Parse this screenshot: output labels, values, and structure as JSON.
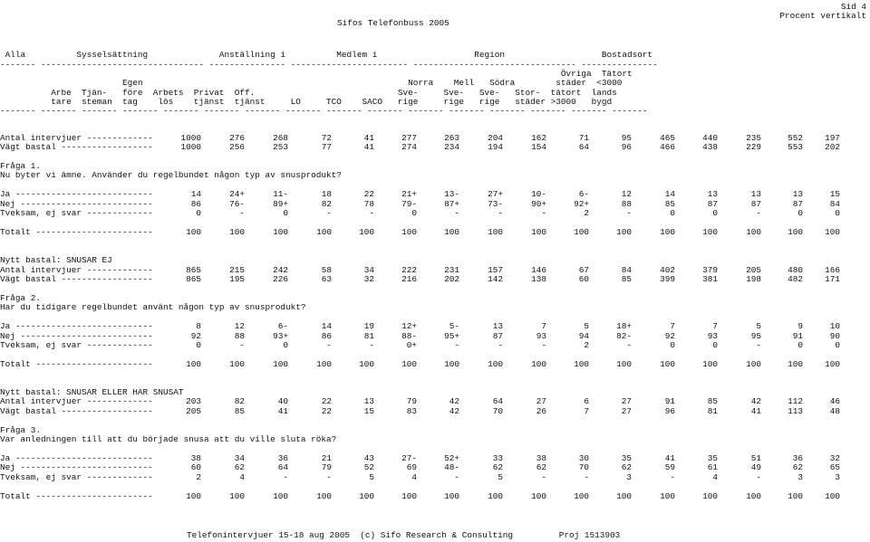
{
  "page": {
    "title": "Sifos Telefonbuss 2005",
    "page_label": "Sid 4",
    "subtitle": "Procent vertikalt",
    "footer": "Telefonintervjuer 15-18 aug 2005  (c) Sifo Research & Consulting         Proj 1513903"
  },
  "header": [
    {
      "text": " Alla          Sysselsättning              Anställning i          Medlem i                   Region                   Bostadsort"
    },
    {
      "text": "------- -------------------------------- --------------- ----------------------- -------------------------------- ---------------"
    },
    {
      "text": "                                                                                                              Övriga  Tätort"
    },
    {
      "text": "                        Egen                                                    Norra    Mell   Södra        städer  <3000"
    },
    {
      "text": "          Arbe  Tjän-   före  Arbets  Privat  Off.                            Sve-     Sve-   Sve-   Stor-  tätort  lands"
    },
    {
      "text": "          tare  steman  tag    lös    tjänst  tjänst     LO     TCO    SACO   rige     rige   rige   städer >3000   bygd"
    },
    {
      "text": "------- ------- ------- ------- ------- ------- ------- ------- ------- ------- ------- ------- ------- ------- ------- -------"
    }
  ],
  "block1": {
    "counts": [
      {
        "label": "Antal intervjuer -------------",
        "values": [
          "1000",
          "276",
          "268",
          "72",
          "41",
          "277",
          "263",
          "204",
          "162",
          "71",
          "95",
          "465",
          "440",
          "235",
          "552",
          "197"
        ]
      },
      {
        "label": "Vägt bastal ------------------",
        "values": [
          "1000",
          "256",
          "253",
          "77",
          "41",
          "274",
          "234",
          "194",
          "154",
          "64",
          "96",
          "466",
          "438",
          "229",
          "553",
          "202"
        ]
      }
    ],
    "question_no": "Fråga 1.",
    "question_lines": [
      "Nu byter vi ämne. Använder du regelbundet någon typ av snusprodukt?"
    ],
    "rows": [
      {
        "label": "Ja ---------------------------",
        "values": [
          "14",
          "24+",
          "11-",
          "18",
          "22",
          "21+",
          "13-",
          "27+",
          "10-",
          "6-",
          "12",
          "14",
          "13",
          "13",
          "13",
          "15"
        ]
      },
      {
        "label": "Nej --------------------------",
        "values": [
          "86",
          "76-",
          "89+",
          "82",
          "78",
          "79-",
          "87+",
          "73-",
          "90+",
          "92+",
          "88",
          "85",
          "87",
          "87",
          "87",
          "84"
        ]
      },
      {
        "label": "Tveksam, ej svar -------------",
        "values": [
          "0",
          "-",
          "0",
          "-",
          "-",
          "0",
          "-",
          "-",
          "-",
          "2",
          "-",
          "0",
          "0",
          "-",
          "0",
          "0"
        ]
      }
    ],
    "total": {
      "label": "Totalt -----------------------",
      "values": [
        "100",
        "100",
        "100",
        "100",
        "100",
        "100",
        "100",
        "100",
        "100",
        "100",
        "100",
        "100",
        "100",
        "100",
        "100",
        "100"
      ]
    }
  },
  "block2": {
    "base": "Nytt bastal: SNUSAR EJ",
    "counts": [
      {
        "label": "Antal intervjuer -------------",
        "values": [
          "865",
          "215",
          "242",
          "58",
          "34",
          "222",
          "231",
          "157",
          "146",
          "67",
          "84",
          "402",
          "379",
          "205",
          "480",
          "166"
        ]
      },
      {
        "label": "Vägt bastal ------------------",
        "values": [
          "865",
          "195",
          "226",
          "63",
          "32",
          "216",
          "202",
          "142",
          "138",
          "60",
          "85",
          "399",
          "381",
          "198",
          "482",
          "171"
        ]
      }
    ],
    "question_no": "Fråga 2.",
    "question_lines": [
      "Har du tidigare regelbundet använt någon typ av snusprodukt?"
    ],
    "rows": [
      {
        "label": "Ja ---------------------------",
        "values": [
          "8",
          "12",
          "6-",
          "14",
          "19",
          "12+",
          "5-",
          "13",
          "7",
          "5",
          "18+",
          "7",
          "7",
          "5",
          "9",
          "10"
        ]
      },
      {
        "label": "Nej --------------------------",
        "values": [
          "92",
          "88",
          "93+",
          "86",
          "81",
          "88-",
          "95+",
          "87",
          "93",
          "94",
          "82-",
          "92",
          "93",
          "95",
          "91",
          "90"
        ]
      },
      {
        "label": "Tveksam, ej svar -------------",
        "values": [
          "0",
          "-",
          "0",
          "-",
          "-",
          "0+",
          "-",
          "-",
          "-",
          "2",
          "-",
          "0",
          "0",
          "-",
          "0",
          "0"
        ]
      }
    ],
    "total": {
      "label": "Totalt -----------------------",
      "values": [
        "100",
        "100",
        "100",
        "100",
        "100",
        "100",
        "100",
        "100",
        "100",
        "100",
        "100",
        "100",
        "100",
        "100",
        "100",
        "100"
      ]
    }
  },
  "block3": {
    "base": "Nytt bastal: SNUSAR ELLER HAR SNUSAT",
    "counts": [
      {
        "label": "Antal intervjuer -------------",
        "values": [
          "203",
          "82",
          "40",
          "22",
          "13",
          "79",
          "42",
          "64",
          "27",
          "6",
          "27",
          "91",
          "85",
          "42",
          "112",
          "46"
        ]
      },
      {
        "label": "Vägt bastal ------------------",
        "values": [
          "205",
          "85",
          "41",
          "22",
          "15",
          "83",
          "42",
          "70",
          "26",
          "7",
          "27",
          "96",
          "81",
          "41",
          "113",
          "48"
        ]
      }
    ],
    "question_no": "Fråga 3.",
    "question_lines": [
      "Var anledningen till att du började snusa att du ville sluta röka?"
    ],
    "rows": [
      {
        "label": "Ja ---------------------------",
        "values": [
          "38",
          "34",
          "36",
          "21",
          "43",
          "27-",
          "52+",
          "33",
          "38",
          "30",
          "35",
          "41",
          "35",
          "51",
          "36",
          "32"
        ]
      },
      {
        "label": "Nej --------------------------",
        "values": [
          "60",
          "62",
          "64",
          "79",
          "52",
          "69",
          "48-",
          "62",
          "62",
          "70",
          "62",
          "59",
          "61",
          "49",
          "62",
          "65"
        ]
      },
      {
        "label": "Tveksam, ej svar -------------",
        "values": [
          "2",
          "4",
          "-",
          "-",
          "5",
          "4",
          "-",
          "5",
          "-",
          "-",
          "3",
          "-",
          "4",
          "-",
          "3",
          "3"
        ]
      }
    ],
    "total": {
      "label": "Totalt -----------------------",
      "values": [
        "100",
        "100",
        "100",
        "100",
        "100",
        "100",
        "100",
        "100",
        "100",
        "100",
        "100",
        "100",
        "100",
        "100",
        "100",
        "100"
      ]
    }
  }
}
